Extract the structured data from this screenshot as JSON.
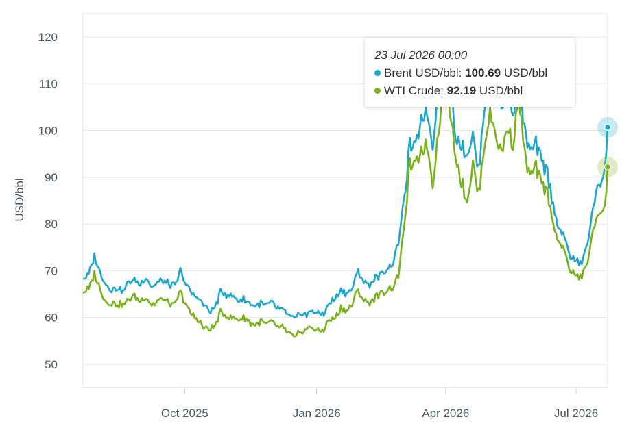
{
  "colors": {
    "brent": "#1ba8cd",
    "wti": "#79b31a",
    "grid": "#e6e6e6",
    "axis": "#ccd3d8"
  },
  "tooltip": {
    "date": "23 Jul 2026 00:00",
    "brent_label": "Brent USD/bbl:",
    "brent_value": "100.69",
    "wti_label": "WTI Crude:",
    "wti_value": "92.19",
    "unit": "USD/bbl"
  },
  "chart_data": {
    "type": "line",
    "title": "",
    "xlabel": "",
    "ylabel": "USD/bbl",
    "ylim": [
      45,
      125
    ],
    "yticks": [
      50,
      60,
      70,
      80,
      90,
      100,
      110,
      120
    ],
    "xlim": [
      "2025-07-22",
      "2026-07-23"
    ],
    "xticks": [
      {
        "date": "2025-10-01",
        "label": "Oct 2025"
      },
      {
        "date": "2026-01-01",
        "label": "Jan 2026"
      },
      {
        "date": "2026-04-01",
        "label": "Apr 2026"
      },
      {
        "date": "2026-07-01",
        "label": "Jul 2026"
      }
    ],
    "grid": true,
    "series": [
      {
        "name": "Brent USD/bbl",
        "points": [
          [
            "2025-07-22",
            68.5
          ],
          [
            "2025-07-26",
            69.0
          ],
          [
            "2025-07-30",
            73.0
          ],
          [
            "2025-08-03",
            69.5
          ],
          [
            "2025-08-07",
            67.0
          ],
          [
            "2025-08-11",
            66.0
          ],
          [
            "2025-08-15",
            66.5
          ],
          [
            "2025-08-19",
            65.5
          ],
          [
            "2025-08-23",
            67.5
          ],
          [
            "2025-08-27",
            68.0
          ],
          [
            "2025-08-31",
            67.0
          ],
          [
            "2025-09-04",
            68.5
          ],
          [
            "2025-09-08",
            66.5
          ],
          [
            "2025-09-12",
            67.5
          ],
          [
            "2025-09-16",
            68.0
          ],
          [
            "2025-09-20",
            67.0
          ],
          [
            "2025-09-24",
            66.5
          ],
          [
            "2025-09-28",
            70.0
          ],
          [
            "2025-10-02",
            67.0
          ],
          [
            "2025-10-06",
            65.0
          ],
          [
            "2025-10-10",
            64.5
          ],
          [
            "2025-10-14",
            62.5
          ],
          [
            "2025-10-18",
            61.5
          ],
          [
            "2025-10-22",
            62.0
          ],
          [
            "2025-10-26",
            65.5
          ],
          [
            "2025-10-30",
            65.0
          ],
          [
            "2025-11-03",
            64.5
          ],
          [
            "2025-11-07",
            63.5
          ],
          [
            "2025-11-11",
            64.0
          ],
          [
            "2025-11-15",
            63.0
          ],
          [
            "2025-11-19",
            62.5
          ],
          [
            "2025-11-23",
            63.0
          ],
          [
            "2025-11-27",
            62.5
          ],
          [
            "2025-12-01",
            63.0
          ],
          [
            "2025-12-05",
            62.0
          ],
          [
            "2025-12-09",
            61.5
          ],
          [
            "2025-12-13",
            60.0
          ],
          [
            "2025-12-17",
            59.5
          ],
          [
            "2025-12-21",
            61.0
          ],
          [
            "2025-12-25",
            60.5
          ],
          [
            "2025-12-29",
            61.5
          ],
          [
            "2026-01-02",
            60.5
          ],
          [
            "2026-01-06",
            61.0
          ],
          [
            "2026-01-10",
            63.0
          ],
          [
            "2026-01-14",
            64.0
          ],
          [
            "2026-01-18",
            66.0
          ],
          [
            "2026-01-22",
            65.0
          ],
          [
            "2026-01-26",
            66.5
          ],
          [
            "2026-01-30",
            70.0
          ],
          [
            "2026-02-03",
            67.5
          ],
          [
            "2026-02-07",
            67.0
          ],
          [
            "2026-02-11",
            68.5
          ],
          [
            "2026-02-15",
            69.0
          ],
          [
            "2026-02-19",
            70.5
          ],
          [
            "2026-02-23",
            71.5
          ],
          [
            "2026-02-27",
            76.0
          ],
          [
            "2026-03-03",
            85.0
          ],
          [
            "2026-03-07",
            97.0
          ],
          [
            "2026-03-11",
            96.0
          ],
          [
            "2026-03-15",
            103.0
          ],
          [
            "2026-03-19",
            104.0
          ],
          [
            "2026-03-23",
            97.0
          ],
          [
            "2026-03-27",
            110.0
          ],
          [
            "2026-03-31",
            113.0
          ],
          [
            "2026-04-04",
            110.0
          ],
          [
            "2026-04-08",
            99.0
          ],
          [
            "2026-04-12",
            97.0
          ],
          [
            "2026-04-16",
            95.0
          ],
          [
            "2026-04-20",
            99.0
          ],
          [
            "2026-04-24",
            91.0
          ],
          [
            "2026-04-28",
            105.0
          ],
          [
            "2026-05-02",
            112.0
          ],
          [
            "2026-05-06",
            108.0
          ],
          [
            "2026-05-10",
            104.0
          ],
          [
            "2026-05-14",
            110.0
          ],
          [
            "2026-05-18",
            104.0
          ],
          [
            "2026-05-22",
            110.0
          ],
          [
            "2026-05-26",
            100.0
          ],
          [
            "2026-05-30",
            95.0
          ],
          [
            "2026-06-03",
            97.0
          ],
          [
            "2026-06-07",
            93.0
          ],
          [
            "2026-06-11",
            91.0
          ],
          [
            "2026-06-15",
            84.0
          ],
          [
            "2026-06-19",
            79.0
          ],
          [
            "2026-06-23",
            77.0
          ],
          [
            "2026-06-27",
            73.0
          ],
          [
            "2026-07-01",
            72.0
          ],
          [
            "2026-07-05",
            71.5
          ],
          [
            "2026-07-09",
            76.0
          ],
          [
            "2026-07-13",
            84.0
          ],
          [
            "2026-07-17",
            88.0
          ],
          [
            "2026-07-21",
            92.0
          ],
          [
            "2026-07-23",
            100.69
          ]
        ]
      },
      {
        "name": "WTI Crude",
        "points": [
          [
            "2025-07-22",
            65.5
          ],
          [
            "2025-07-26",
            66.0
          ],
          [
            "2025-07-30",
            69.5
          ],
          [
            "2025-08-03",
            66.0
          ],
          [
            "2025-08-07",
            63.5
          ],
          [
            "2025-08-11",
            63.0
          ],
          [
            "2025-08-15",
            63.0
          ],
          [
            "2025-08-19",
            62.5
          ],
          [
            "2025-08-23",
            64.0
          ],
          [
            "2025-08-27",
            64.5
          ],
          [
            "2025-08-31",
            63.5
          ],
          [
            "2025-09-04",
            64.5
          ],
          [
            "2025-09-08",
            62.5
          ],
          [
            "2025-09-12",
            63.5
          ],
          [
            "2025-09-16",
            64.0
          ],
          [
            "2025-09-20",
            63.0
          ],
          [
            "2025-09-24",
            62.5
          ],
          [
            "2025-09-28",
            65.5
          ],
          [
            "2025-10-02",
            62.5
          ],
          [
            "2025-10-06",
            60.5
          ],
          [
            "2025-10-10",
            59.5
          ],
          [
            "2025-10-14",
            58.0
          ],
          [
            "2025-10-18",
            57.5
          ],
          [
            "2025-10-22",
            58.0
          ],
          [
            "2025-10-26",
            61.0
          ],
          [
            "2025-10-30",
            60.5
          ],
          [
            "2025-11-03",
            60.0
          ],
          [
            "2025-11-07",
            59.5
          ],
          [
            "2025-11-11",
            60.0
          ],
          [
            "2025-11-15",
            59.0
          ],
          [
            "2025-11-19",
            58.5
          ],
          [
            "2025-11-23",
            59.0
          ],
          [
            "2025-11-27",
            58.5
          ],
          [
            "2025-12-01",
            59.0
          ],
          [
            "2025-12-05",
            58.0
          ],
          [
            "2025-12-09",
            57.5
          ],
          [
            "2025-12-13",
            56.5
          ],
          [
            "2025-12-17",
            55.5
          ],
          [
            "2025-12-21",
            57.0
          ],
          [
            "2025-12-25",
            57.5
          ],
          [
            "2025-12-29",
            58.0
          ],
          [
            "2026-01-02",
            57.0
          ],
          [
            "2026-01-06",
            57.5
          ],
          [
            "2026-01-10",
            59.5
          ],
          [
            "2026-01-14",
            60.0
          ],
          [
            "2026-01-18",
            62.0
          ],
          [
            "2026-01-22",
            61.5
          ],
          [
            "2026-01-26",
            63.0
          ],
          [
            "2026-01-30",
            66.0
          ],
          [
            "2026-02-03",
            63.5
          ],
          [
            "2026-02-07",
            63.0
          ],
          [
            "2026-02-11",
            64.5
          ],
          [
            "2026-02-15",
            65.0
          ],
          [
            "2026-02-19",
            66.0
          ],
          [
            "2026-02-23",
            66.5
          ],
          [
            "2026-02-27",
            69.0
          ],
          [
            "2026-03-03",
            79.0
          ],
          [
            "2026-03-07",
            93.0
          ],
          [
            "2026-03-11",
            92.0
          ],
          [
            "2026-03-15",
            96.0
          ],
          [
            "2026-03-19",
            97.0
          ],
          [
            "2026-03-23",
            89.0
          ],
          [
            "2026-03-27",
            100.0
          ],
          [
            "2026-03-31",
            110.0
          ],
          [
            "2026-04-04",
            104.0
          ],
          [
            "2026-04-08",
            95.0
          ],
          [
            "2026-04-12",
            89.0
          ],
          [
            "2026-04-16",
            85.0
          ],
          [
            "2026-04-20",
            93.0
          ],
          [
            "2026-04-24",
            86.0
          ],
          [
            "2026-04-28",
            97.0
          ],
          [
            "2026-05-02",
            104.0
          ],
          [
            "2026-05-06",
            99.0
          ],
          [
            "2026-05-10",
            95.0
          ],
          [
            "2026-05-14",
            101.0
          ],
          [
            "2026-05-18",
            97.0
          ],
          [
            "2026-05-22",
            108.0
          ],
          [
            "2026-05-26",
            95.0
          ],
          [
            "2026-05-30",
            90.0
          ],
          [
            "2026-06-03",
            92.0
          ],
          [
            "2026-06-07",
            88.0
          ],
          [
            "2026-06-11",
            87.0
          ],
          [
            "2026-06-15",
            80.0
          ],
          [
            "2026-06-19",
            76.0
          ],
          [
            "2026-06-23",
            74.0
          ],
          [
            "2026-06-27",
            70.0
          ],
          [
            "2026-07-01",
            69.0
          ],
          [
            "2026-07-05",
            68.5
          ],
          [
            "2026-07-09",
            72.0
          ],
          [
            "2026-07-13",
            79.0
          ],
          [
            "2026-07-17",
            82.0
          ],
          [
            "2026-07-21",
            84.0
          ],
          [
            "2026-07-23",
            92.19
          ]
        ]
      }
    ]
  }
}
